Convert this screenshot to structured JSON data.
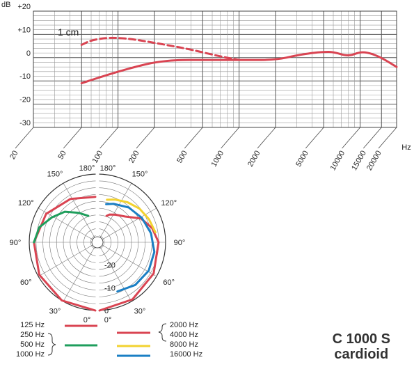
{
  "chart_data": [
    {
      "type": "line",
      "y_unit_label": "dB",
      "x_unit_label": "Hz",
      "x_scale": "log",
      "xlim": [
        20,
        20000
      ],
      "ylim": [
        -30,
        20
      ],
      "y_ticks": [
        "+20",
        "+10",
        "0",
        "-10",
        "-20",
        "-30"
      ],
      "x_ticks": [
        "20",
        "50",
        "100",
        "200",
        "500",
        "1000",
        "2000",
        "5000",
        "10000",
        "15000",
        "20000"
      ],
      "grid": true,
      "annotation": "1 cm",
      "series": [
        {
          "style": "solid",
          "color": "#d94452",
          "x": [
            50,
            70,
            100,
            150,
            200,
            300,
            500,
            1000,
            2000,
            3000,
            4000,
            5000,
            6000,
            8000,
            10000,
            12000,
            15000,
            20000
          ],
          "y": [
            -11,
            -8.5,
            -6,
            -3.5,
            -2,
            -1,
            -1,
            -1,
            -1,
            1,
            2,
            2.5,
            2.5,
            0.5,
            2.5,
            2,
            0,
            -4
          ]
        },
        {
          "style": "dashed",
          "color": "#d94452",
          "x": [
            50,
            60,
            80,
            100,
            130,
            170,
            250,
            400,
            700,
            1000
          ],
          "y": [
            5.5,
            7.5,
            8.5,
            8.5,
            8,
            7,
            5.5,
            3.5,
            0.5,
            -1
          ]
        }
      ]
    },
    {
      "type": "polar",
      "angle_labels": [
        "180°",
        "150°",
        "120°",
        "90°",
        "60°",
        "30°",
        "0°"
      ],
      "radial_labels": [
        "-20",
        "-10",
        "0"
      ],
      "legend": [
        {
          "labels": [
            "125 Hz",
            "250 Hz",
            "500 Hz",
            "1000 Hz"
          ]
        },
        {
          "labels": [
            "2000 Hz",
            "4000 Hz",
            "8000 Hz",
            "16000 Hz"
          ]
        }
      ],
      "series": [
        {
          "name": "125 Hz",
          "color": "#d94452",
          "side": "left",
          "theta": [
            0,
            30,
            60,
            90,
            120,
            150,
            180
          ],
          "db": [
            0,
            -0.5,
            -1.5,
            -3,
            -5,
            -8,
            -10
          ]
        },
        {
          "name": "250 Hz / 500 Hz / 1000 Hz",
          "color": "#1f9e5c",
          "side": "left",
          "theta": [
            90,
            105,
            120,
            135,
            150,
            165
          ],
          "db": [
            -3,
            -4.5,
            -8,
            -11,
            -15,
            -18
          ]
        },
        {
          "name": "2000 Hz / 4000 Hz",
          "color": "#d94452",
          "side": "right",
          "theta": [
            0,
            30,
            60,
            90,
            105,
            120,
            135,
            150,
            160,
            165
          ],
          "db": [
            0,
            -1,
            -2.5,
            -4,
            -6,
            -9,
            -14,
            -16,
            -17,
            -18
          ]
        },
        {
          "name": "8000 Hz",
          "color": "#f2d230",
          "side": "right",
          "theta": [
            100,
            115,
            130,
            145,
            160,
            170
          ],
          "db": [
            -5,
            -6,
            -7,
            -8.5,
            -10,
            -11
          ]
        },
        {
          "name": "16000 Hz",
          "color": "#1b7fc4",
          "side": "right",
          "theta": [
            20,
            40,
            60,
            80,
            100,
            120,
            140,
            160,
            170
          ],
          "db": [
            -7,
            -5.5,
            -5,
            -5.5,
            -7,
            -8.5,
            -10,
            -12,
            -13
          ]
        }
      ]
    }
  ],
  "product": {
    "model": "C 1000 S",
    "pattern": "cardioid"
  }
}
